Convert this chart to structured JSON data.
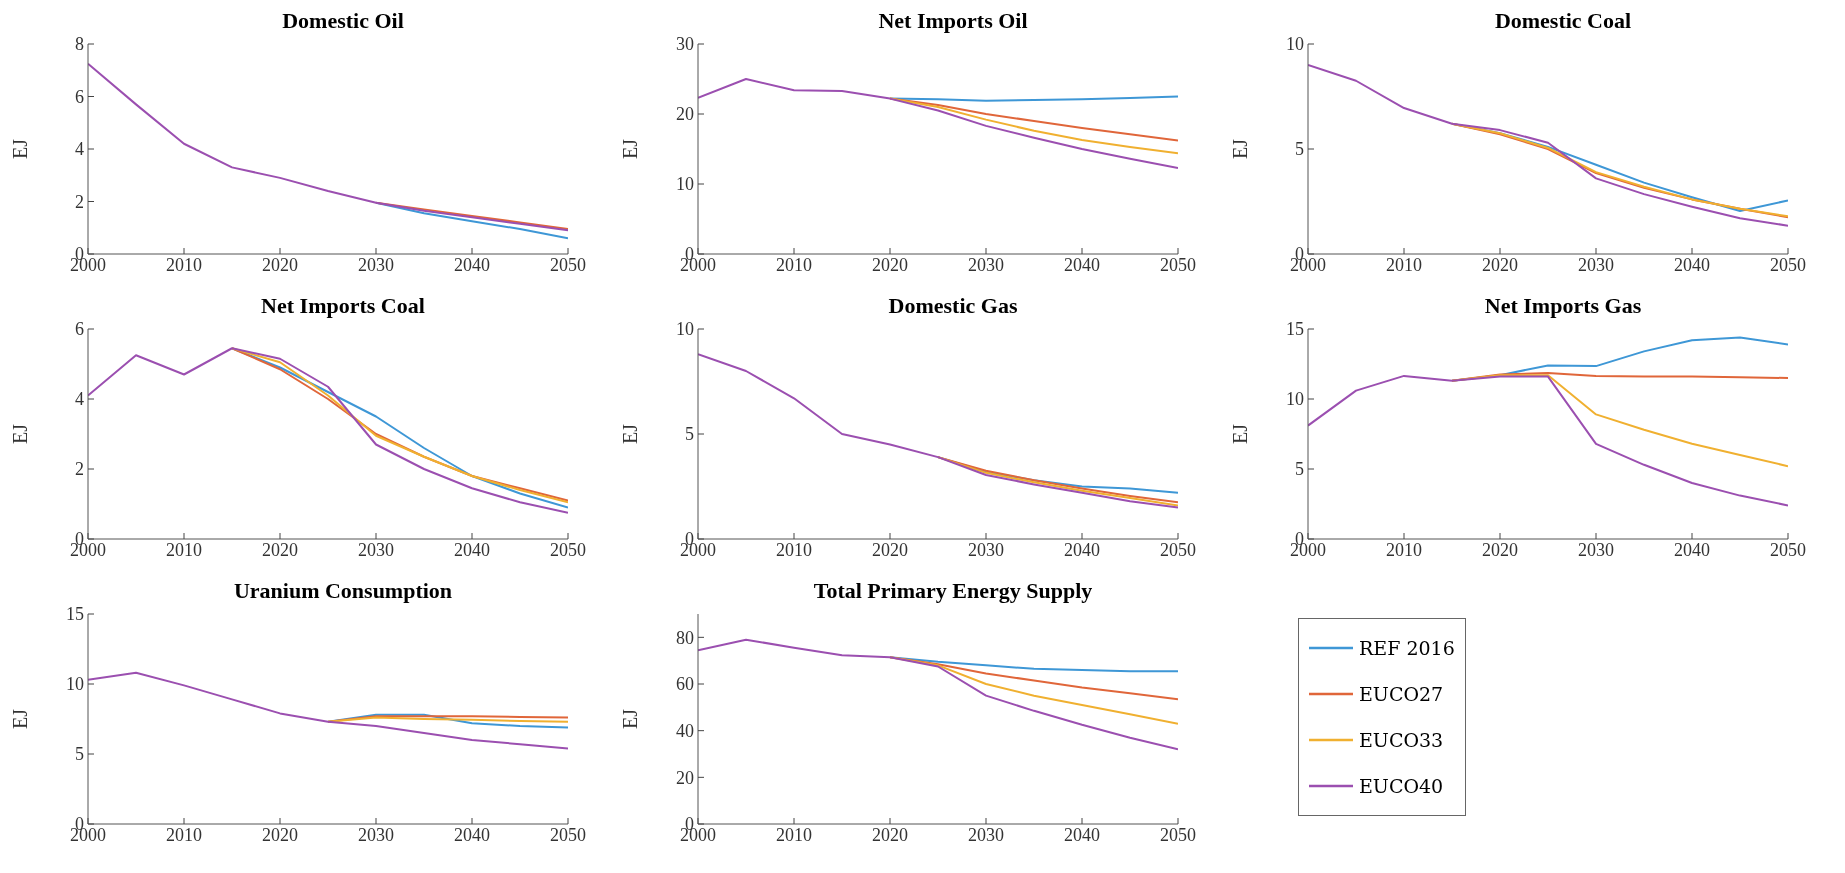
{
  "chart_data": [
    {
      "type": "line",
      "title": "Domestic Oil",
      "ylabel": "EJ",
      "x": [
        2000,
        2005,
        2010,
        2015,
        2020,
        2025,
        2030,
        2035,
        2040,
        2045,
        2050
      ],
      "xlim": [
        2000,
        2050
      ],
      "xticks": [
        2000,
        2010,
        2020,
        2030,
        2040,
        2050
      ],
      "ylim": [
        0,
        8
      ],
      "yticks": [
        0,
        2,
        4,
        6,
        8
      ],
      "series": [
        {
          "color": "#3e97d6",
          "values": [
            null,
            null,
            null,
            null,
            null,
            null,
            1.95,
            1.55,
            1.25,
            0.95,
            0.6
          ]
        },
        {
          "color": "#e0663a",
          "values": [
            null,
            null,
            null,
            null,
            null,
            null,
            1.95,
            1.7,
            1.45,
            1.2,
            0.95
          ]
        },
        {
          "color": "#f0b030",
          "values": [
            null,
            null,
            null,
            null,
            null,
            null,
            null,
            null,
            null,
            null,
            null
          ]
        },
        {
          "color": "#9b4fb0",
          "values": [
            7.25,
            5.7,
            4.2,
            3.3,
            2.9,
            2.4,
            1.95,
            1.65,
            1.4,
            1.15,
            0.9
          ]
        }
      ]
    },
    {
      "type": "line",
      "title": "Net Imports Oil",
      "ylabel": "EJ",
      "x": [
        2000,
        2005,
        2010,
        2015,
        2020,
        2025,
        2030,
        2035,
        2040,
        2045,
        2050
      ],
      "xlim": [
        2000,
        2050
      ],
      "xticks": [
        2000,
        2010,
        2020,
        2030,
        2040,
        2050
      ],
      "ylim": [
        0,
        30
      ],
      "yticks": [
        0,
        10,
        20,
        30
      ],
      "series": [
        {
          "color": "#3e97d6",
          "values": [
            null,
            null,
            null,
            null,
            22.2,
            22.1,
            21.9,
            22.0,
            22.1,
            22.3,
            22.5
          ]
        },
        {
          "color": "#e0663a",
          "values": [
            null,
            null,
            null,
            null,
            22.2,
            21.3,
            20.0,
            19.0,
            18.0,
            17.1,
            16.2
          ]
        },
        {
          "color": "#f0b030",
          "values": [
            null,
            null,
            null,
            null,
            22.2,
            21.0,
            19.2,
            17.6,
            16.3,
            15.3,
            14.4
          ]
        },
        {
          "color": "#9b4fb0",
          "values": [
            22.3,
            25.0,
            23.4,
            23.3,
            22.2,
            20.5,
            18.3,
            16.6,
            15.0,
            13.6,
            12.3
          ]
        }
      ]
    },
    {
      "type": "line",
      "title": "Domestic Coal",
      "ylabel": "EJ",
      "x": [
        2000,
        2005,
        2010,
        2015,
        2020,
        2025,
        2030,
        2035,
        2040,
        2045,
        2050
      ],
      "xlim": [
        2000,
        2050
      ],
      "xticks": [
        2000,
        2010,
        2020,
        2030,
        2040,
        2050
      ],
      "ylim": [
        0,
        10
      ],
      "yticks": [
        0,
        5,
        10
      ],
      "series": [
        {
          "color": "#3e97d6",
          "values": [
            null,
            null,
            null,
            6.2,
            5.75,
            5.1,
            4.25,
            3.4,
            2.7,
            2.05,
            2.55
          ]
        },
        {
          "color": "#e0663a",
          "values": [
            null,
            null,
            null,
            6.2,
            5.7,
            5.0,
            3.85,
            3.15,
            2.6,
            2.15,
            1.75
          ]
        },
        {
          "color": "#f0b030",
          "values": [
            null,
            null,
            null,
            6.2,
            5.75,
            5.05,
            3.9,
            3.2,
            2.6,
            2.15,
            1.8
          ]
        },
        {
          "color": "#9b4fb0",
          "values": [
            9.0,
            8.25,
            6.95,
            6.2,
            5.9,
            5.3,
            3.6,
            2.85,
            2.25,
            1.7,
            1.35
          ]
        }
      ]
    },
    {
      "type": "line",
      "title": "Net Imports Coal",
      "ylabel": "EJ",
      "x": [
        2000,
        2005,
        2010,
        2015,
        2020,
        2025,
        2030,
        2035,
        2040,
        2045,
        2050
      ],
      "xlim": [
        2000,
        2050
      ],
      "xticks": [
        2000,
        2010,
        2020,
        2030,
        2040,
        2050
      ],
      "ylim": [
        0,
        6
      ],
      "yticks": [
        0,
        2,
        4,
        6
      ],
      "series": [
        {
          "color": "#3e97d6",
          "values": [
            null,
            null,
            null,
            5.45,
            4.9,
            4.2,
            3.5,
            2.6,
            1.8,
            1.3,
            0.9
          ]
        },
        {
          "color": "#e0663a",
          "values": [
            null,
            null,
            null,
            5.45,
            4.85,
            4.0,
            3.0,
            2.35,
            1.8,
            1.45,
            1.1
          ]
        },
        {
          "color": "#f0b030",
          "values": [
            null,
            null,
            null,
            5.45,
            5.05,
            4.1,
            2.95,
            2.35,
            1.8,
            1.4,
            1.05
          ]
        },
        {
          "color": "#9b4fb0",
          "values": [
            4.1,
            5.25,
            4.7,
            5.45,
            5.15,
            4.35,
            2.7,
            2.0,
            1.45,
            1.05,
            0.75
          ]
        }
      ]
    },
    {
      "type": "line",
      "title": "Domestic Gas",
      "ylabel": "EJ",
      "x": [
        2000,
        2005,
        2010,
        2015,
        2020,
        2025,
        2030,
        2035,
        2040,
        2045,
        2050
      ],
      "xlim": [
        2000,
        2050
      ],
      "xticks": [
        2000,
        2010,
        2020,
        2030,
        2040,
        2050
      ],
      "ylim": [
        0,
        10
      ],
      "yticks": [
        0,
        5,
        10
      ],
      "series": [
        {
          "color": "#3e97d6",
          "values": [
            null,
            null,
            null,
            null,
            null,
            3.9,
            3.2,
            2.8,
            2.5,
            2.4,
            2.2
          ]
        },
        {
          "color": "#e0663a",
          "values": [
            null,
            null,
            null,
            null,
            null,
            3.9,
            3.25,
            2.8,
            2.4,
            2.05,
            1.75
          ]
        },
        {
          "color": "#f0b030",
          "values": [
            null,
            null,
            null,
            null,
            null,
            3.9,
            3.15,
            2.7,
            2.3,
            1.95,
            1.6
          ]
        },
        {
          "color": "#9b4fb0",
          "values": [
            8.8,
            8.0,
            6.7,
            5.0,
            4.5,
            3.9,
            3.05,
            2.6,
            2.2,
            1.8,
            1.5
          ]
        }
      ]
    },
    {
      "type": "line",
      "title": "Net Imports Gas",
      "ylabel": "EJ",
      "x": [
        2000,
        2005,
        2010,
        2015,
        2020,
        2025,
        2030,
        2035,
        2040,
        2045,
        2050
      ],
      "xlim": [
        2000,
        2050
      ],
      "xticks": [
        2000,
        2010,
        2020,
        2030,
        2040,
        2050
      ],
      "ylim": [
        0,
        15
      ],
      "yticks": [
        0,
        5,
        10,
        15
      ],
      "series": [
        {
          "color": "#3e97d6",
          "values": [
            null,
            null,
            null,
            11.3,
            11.7,
            12.4,
            12.35,
            13.4,
            14.2,
            14.4,
            13.9
          ]
        },
        {
          "color": "#e0663a",
          "values": [
            null,
            null,
            null,
            11.3,
            11.75,
            11.85,
            11.65,
            11.6,
            11.6,
            11.55,
            11.5
          ]
        },
        {
          "color": "#f0b030",
          "values": [
            null,
            null,
            null,
            11.3,
            11.7,
            11.7,
            8.9,
            7.8,
            6.8,
            6.0,
            5.2
          ]
        },
        {
          "color": "#9b4fb0",
          "values": [
            8.1,
            10.6,
            11.65,
            11.3,
            11.6,
            11.6,
            6.8,
            5.3,
            4.0,
            3.1,
            2.4
          ]
        }
      ]
    },
    {
      "type": "line",
      "title": "Uranium Consumption",
      "ylabel": "EJ",
      "x": [
        2000,
        2005,
        2010,
        2015,
        2020,
        2025,
        2030,
        2035,
        2040,
        2045,
        2050
      ],
      "xlim": [
        2000,
        2050
      ],
      "xticks": [
        2000,
        2010,
        2020,
        2030,
        2040,
        2050
      ],
      "ylim": [
        0,
        15
      ],
      "yticks": [
        0,
        5,
        10,
        15
      ],
      "series": [
        {
          "color": "#3e97d6",
          "values": [
            null,
            null,
            null,
            null,
            null,
            7.3,
            7.8,
            7.8,
            7.2,
            7.0,
            6.9
          ]
        },
        {
          "color": "#e0663a",
          "values": [
            null,
            null,
            null,
            null,
            null,
            7.3,
            7.7,
            7.7,
            7.7,
            7.65,
            7.6
          ]
        },
        {
          "color": "#f0b030",
          "values": [
            null,
            null,
            null,
            null,
            null,
            7.3,
            7.6,
            7.5,
            7.45,
            7.35,
            7.3
          ]
        },
        {
          "color": "#9b4fb0",
          "values": [
            10.3,
            10.8,
            9.9,
            8.9,
            7.9,
            7.3,
            7.0,
            6.5,
            6.0,
            5.7,
            5.4
          ]
        }
      ]
    },
    {
      "type": "line",
      "title": "Total Primary Energy Supply",
      "ylabel": "EJ",
      "x": [
        2000,
        2005,
        2010,
        2015,
        2020,
        2025,
        2030,
        2035,
        2040,
        2045,
        2050
      ],
      "xlim": [
        2000,
        2050
      ],
      "xticks": [
        2000,
        2010,
        2020,
        2030,
        2040,
        2050
      ],
      "ylim": [
        0,
        90
      ],
      "yticks": [
        0,
        20,
        40,
        60,
        80
      ],
      "legend": "right",
      "series": [
        {
          "name": "REF 2016",
          "color": "#3e97d6",
          "values": [
            null,
            null,
            null,
            null,
            71.5,
            69.5,
            68,
            66.5,
            66,
            65.5,
            65.5
          ]
        },
        {
          "name": "EUCO27",
          "color": "#e0663a",
          "values": [
            null,
            null,
            null,
            null,
            71.5,
            68.5,
            64.5,
            61.5,
            58.5,
            56,
            53.5
          ]
        },
        {
          "name": "EUCO33",
          "color": "#f0b030",
          "values": [
            null,
            null,
            null,
            null,
            71.5,
            68,
            60,
            55,
            51,
            47,
            43
          ]
        },
        {
          "name": "EUCO40",
          "color": "#9b4fb0",
          "values": [
            74.5,
            79,
            75.5,
            72.3,
            71.5,
            67.5,
            55,
            48.5,
            42.5,
            37,
            32
          ]
        }
      ]
    }
  ]
}
